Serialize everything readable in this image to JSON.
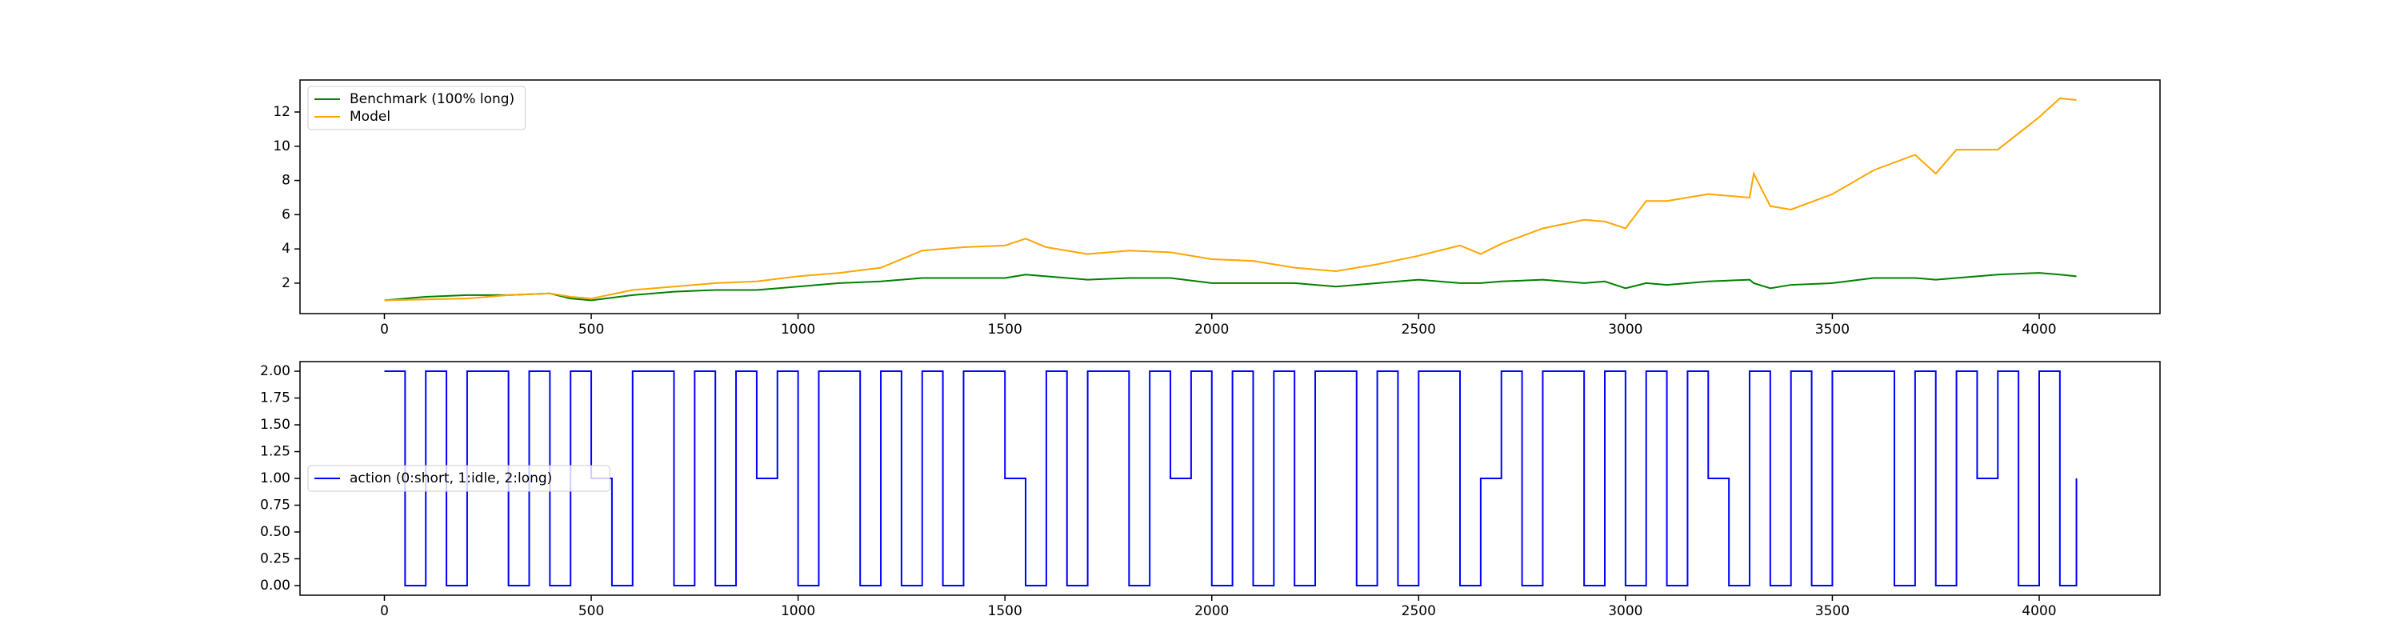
{
  "chart_data": [
    {
      "type": "line",
      "x": [
        0,
        100,
        200,
        300,
        400,
        450,
        500,
        600,
        700,
        800,
        900,
        1000,
        1100,
        1200,
        1250,
        1300,
        1400,
        1500,
        1550,
        1600,
        1700,
        1800,
        1900,
        2000,
        2100,
        2200,
        2300,
        2400,
        2500,
        2600,
        2650,
        2700,
        2800,
        2900,
        2950,
        3000,
        3050,
        3100,
        3200,
        3300,
        3310,
        3350,
        3400,
        3500,
        3600,
        3700,
        3750,
        3800,
        3900,
        4000,
        4050,
        4090
      ],
      "series": [
        {
          "name": "Benchmark (100% long)",
          "color": "green",
          "values": [
            1.0,
            1.2,
            1.3,
            1.3,
            1.4,
            1.1,
            1.0,
            1.3,
            1.5,
            1.6,
            1.6,
            1.8,
            2.0,
            2.1,
            2.2,
            2.3,
            2.3,
            2.3,
            2.5,
            2.4,
            2.2,
            2.3,
            2.3,
            2.0,
            2.0,
            2.0,
            1.8,
            2.0,
            2.2,
            2.0,
            2.0,
            2.1,
            2.2,
            2.0,
            2.1,
            1.7,
            2.0,
            1.9,
            2.1,
            2.2,
            2.0,
            1.7,
            1.9,
            2.0,
            2.3,
            2.3,
            2.2,
            2.3,
            2.5,
            2.6,
            2.5,
            2.4
          ]
        },
        {
          "name": "Model",
          "color": "orange",
          "values": [
            1.0,
            1.05,
            1.1,
            1.3,
            1.4,
            1.2,
            1.1,
            1.6,
            1.8,
            2.0,
            2.1,
            2.4,
            2.6,
            2.9,
            3.4,
            3.9,
            4.1,
            4.2,
            4.6,
            4.1,
            3.7,
            3.9,
            3.8,
            3.4,
            3.3,
            2.9,
            2.7,
            3.1,
            3.6,
            4.2,
            3.7,
            4.3,
            5.2,
            5.7,
            5.6,
            5.2,
            6.8,
            6.8,
            7.2,
            7.0,
            8.4,
            6.5,
            6.3,
            7.2,
            8.6,
            9.5,
            8.4,
            9.8,
            9.8,
            11.7,
            12.8,
            12.7
          ]
        }
      ],
      "xlim": [
        -204,
        4292
      ],
      "ylim": [
        0.22,
        13.87
      ],
      "xticks": [
        0,
        500,
        1000,
        1500,
        2000,
        2500,
        3000,
        3500,
        4000
      ],
      "yticks": [
        2,
        4,
        6,
        8,
        10,
        12
      ],
      "legend": "upper left"
    },
    {
      "type": "line",
      "drawstyle": "steps-post",
      "x": [
        0,
        50,
        100,
        150,
        200,
        250,
        300,
        350,
        400,
        450,
        500,
        550,
        600,
        650,
        700,
        750,
        800,
        850,
        900,
        950,
        1000,
        1050,
        1100,
        1150,
        1200,
        1250,
        1300,
        1350,
        1400,
        1450,
        1500,
        1550,
        1600,
        1650,
        1700,
        1750,
        1800,
        1850,
        1900,
        1950,
        2000,
        2050,
        2100,
        2150,
        2200,
        2250,
        2300,
        2350,
        2400,
        2450,
        2500,
        2550,
        2600,
        2650,
        2700,
        2750,
        2800,
        2850,
        2900,
        2950,
        3000,
        3050,
        3100,
        3150,
        3200,
        3250,
        3300,
        3350,
        3400,
        3450,
        3500,
        3550,
        3600,
        3650,
        3700,
        3750,
        3800,
        3850,
        3900,
        3950,
        4000,
        4050,
        4090
      ],
      "series": [
        {
          "name": "action (0:short, 1:idle, 2:long)",
          "color": "blue",
          "values": [
            2,
            0,
            2,
            0,
            2,
            2,
            0,
            2,
            0,
            2,
            1,
            0,
            2,
            2,
            0,
            2,
            0,
            2,
            1,
            2,
            0,
            2,
            2,
            0,
            2,
            0,
            2,
            0,
            2,
            2,
            1,
            0,
            2,
            0,
            2,
            2,
            0,
            2,
            1,
            2,
            0,
            2,
            0,
            2,
            0,
            2,
            2,
            0,
            2,
            0,
            2,
            2,
            0,
            1,
            2,
            0,
            2,
            2,
            0,
            2,
            0,
            2,
            0,
            2,
            1,
            0,
            2,
            0,
            2,
            0,
            2,
            2,
            2,
            0,
            2,
            0,
            2,
            1,
            2,
            0,
            2,
            0,
            1
          ]
        }
      ],
      "xlim": [
        -204,
        4292
      ],
      "ylim": [
        -0.09,
        2.09
      ],
      "xticks": [
        0,
        500,
        1000,
        1500,
        2000,
        2500,
        3000,
        3500,
        4000
      ],
      "yticks": [
        {
          "value": 0,
          "label": "0.00"
        },
        {
          "value": 0.25,
          "label": "0.25"
        },
        {
          "value": 0.5,
          "label": "0.50"
        },
        {
          "value": 0.75,
          "label": "0.75"
        },
        {
          "value": 1,
          "label": "1.00"
        },
        {
          "value": 1.25,
          "label": "1.25"
        },
        {
          "value": 1.5,
          "label": "1.50"
        },
        {
          "value": 1.75,
          "label": "1.75"
        },
        {
          "value": 2,
          "label": "2.00"
        }
      ],
      "legend": "center left"
    }
  ]
}
